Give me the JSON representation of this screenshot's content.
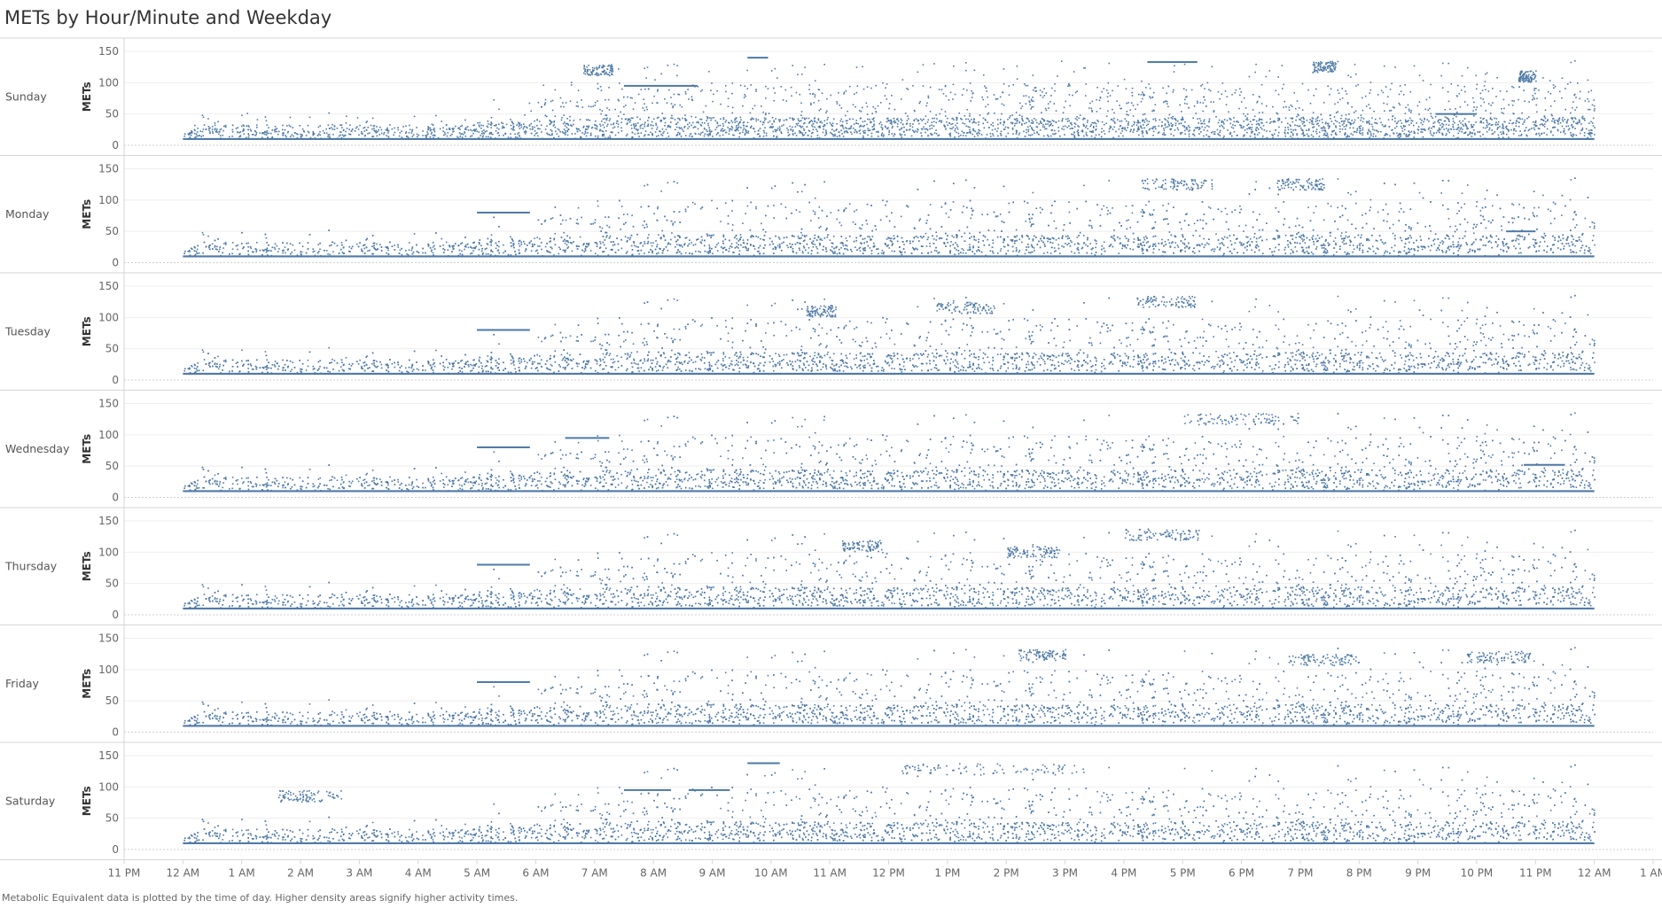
{
  "title": "METs by Hour/Minute and Weekday",
  "footnote": "Metabolic Equivalent data is plotted by the time of day. Higher density areas signify higher activity times.",
  "colors": {
    "marks": "#4e79a7",
    "grid": "#eeeeee",
    "border": "#d6d6d6",
    "zero_line": "#cfcfcf"
  },
  "chart_data": {
    "type": "scatter",
    "ylabel": "METs",
    "yticks": [
      0,
      50,
      100,
      150
    ],
    "ylim": [
      -5,
      160
    ],
    "xticks": [
      "11 PM",
      "12 AM",
      "1 AM",
      "2 AM",
      "3 AM",
      "4 AM",
      "5 AM",
      "6 AM",
      "7 AM",
      "8 AM",
      "9 AM",
      "10 AM",
      "11 AM",
      "12 PM",
      "1 PM",
      "2 PM",
      "3 PM",
      "4 PM",
      "5 PM",
      "6 PM",
      "7 PM",
      "8 PM",
      "9 PM",
      "10 PM",
      "11 PM",
      "12 AM",
      "1 AM"
    ],
    "xlim_hours": [
      -1,
      25
    ],
    "grid": true,
    "rows": [
      {
        "weekday": "Sunday",
        "baseline": [
          10,
          27
        ],
        "features": [
          {
            "type": "band",
            "start": 7.5,
            "end": 8.75,
            "y": 95
          },
          {
            "type": "band",
            "start": 9.6,
            "end": 9.95,
            "y": 140
          },
          {
            "type": "band",
            "start": 16.4,
            "end": 17.25,
            "y": 133
          },
          {
            "type": "band",
            "start": 21.3,
            "end": 22,
            "y": 50
          },
          {
            "type": "cluster",
            "start": 6.8,
            "end": 7.3,
            "y": 120
          },
          {
            "type": "cluster",
            "start": 19.2,
            "end": 19.6,
            "y": 125
          },
          {
            "type": "cluster",
            "start": 22.7,
            "end": 23.0,
            "y": 110
          }
        ]
      },
      {
        "weekday": "Monday",
        "baseline": [
          10,
          27
        ],
        "features": [
          {
            "type": "band",
            "start": 5.0,
            "end": 5.9,
            "y": 80
          },
          {
            "type": "cluster",
            "start": 16.3,
            "end": 17.5,
            "y": 125
          },
          {
            "type": "cluster",
            "start": 18.6,
            "end": 19.4,
            "y": 125
          },
          {
            "type": "band",
            "start": 22.5,
            "end": 23.0,
            "y": 50
          }
        ]
      },
      {
        "weekday": "Tuesday",
        "baseline": [
          10,
          27
        ],
        "features": [
          {
            "type": "band",
            "start": 5.0,
            "end": 5.9,
            "y": 80
          },
          {
            "type": "cluster",
            "start": 16.2,
            "end": 17.2,
            "y": 125
          },
          {
            "type": "cluster",
            "start": 12.8,
            "end": 13.8,
            "y": 115
          },
          {
            "type": "cluster",
            "start": 10.6,
            "end": 11.1,
            "y": 110
          }
        ]
      },
      {
        "weekday": "Wednesday",
        "baseline": [
          10,
          27
        ],
        "features": [
          {
            "type": "band",
            "start": 5.0,
            "end": 5.9,
            "y": 80
          },
          {
            "type": "band",
            "start": 6.5,
            "end": 7.25,
            "y": 95
          },
          {
            "type": "cluster",
            "start": 17.0,
            "end": 19.0,
            "y": 125
          },
          {
            "type": "band",
            "start": 22.8,
            "end": 23.5,
            "y": 52
          }
        ]
      },
      {
        "weekday": "Thursday",
        "baseline": [
          10,
          27
        ],
        "features": [
          {
            "type": "band",
            "start": 5.0,
            "end": 5.9,
            "y": 80
          },
          {
            "type": "cluster",
            "start": 16.0,
            "end": 17.3,
            "y": 128
          },
          {
            "type": "cluster",
            "start": 11.2,
            "end": 11.9,
            "y": 110
          },
          {
            "type": "cluster",
            "start": 14.0,
            "end": 14.9,
            "y": 100
          }
        ]
      },
      {
        "weekday": "Friday",
        "baseline": [
          10,
          27
        ],
        "features": [
          {
            "type": "band",
            "start": 5.0,
            "end": 5.9,
            "y": 80
          },
          {
            "type": "cluster",
            "start": 14.2,
            "end": 15.0,
            "y": 123
          },
          {
            "type": "cluster",
            "start": 18.8,
            "end": 20.0,
            "y": 115
          },
          {
            "type": "cluster",
            "start": 21.8,
            "end": 22.9,
            "y": 120
          }
        ]
      },
      {
        "weekday": "Saturday",
        "baseline": [
          10,
          27
        ],
        "features": [
          {
            "type": "band",
            "start": 7.5,
            "end": 8.3,
            "y": 95
          },
          {
            "type": "band",
            "start": 8.6,
            "end": 9.3,
            "y": 95
          },
          {
            "type": "band",
            "start": 9.6,
            "end": 10.15,
            "y": 138
          },
          {
            "type": "cluster",
            "start": 12.2,
            "end": 15.3,
            "y": 128
          },
          {
            "type": "cluster",
            "start": 1.6,
            "end": 2.7,
            "y": 85
          }
        ]
      }
    ]
  }
}
